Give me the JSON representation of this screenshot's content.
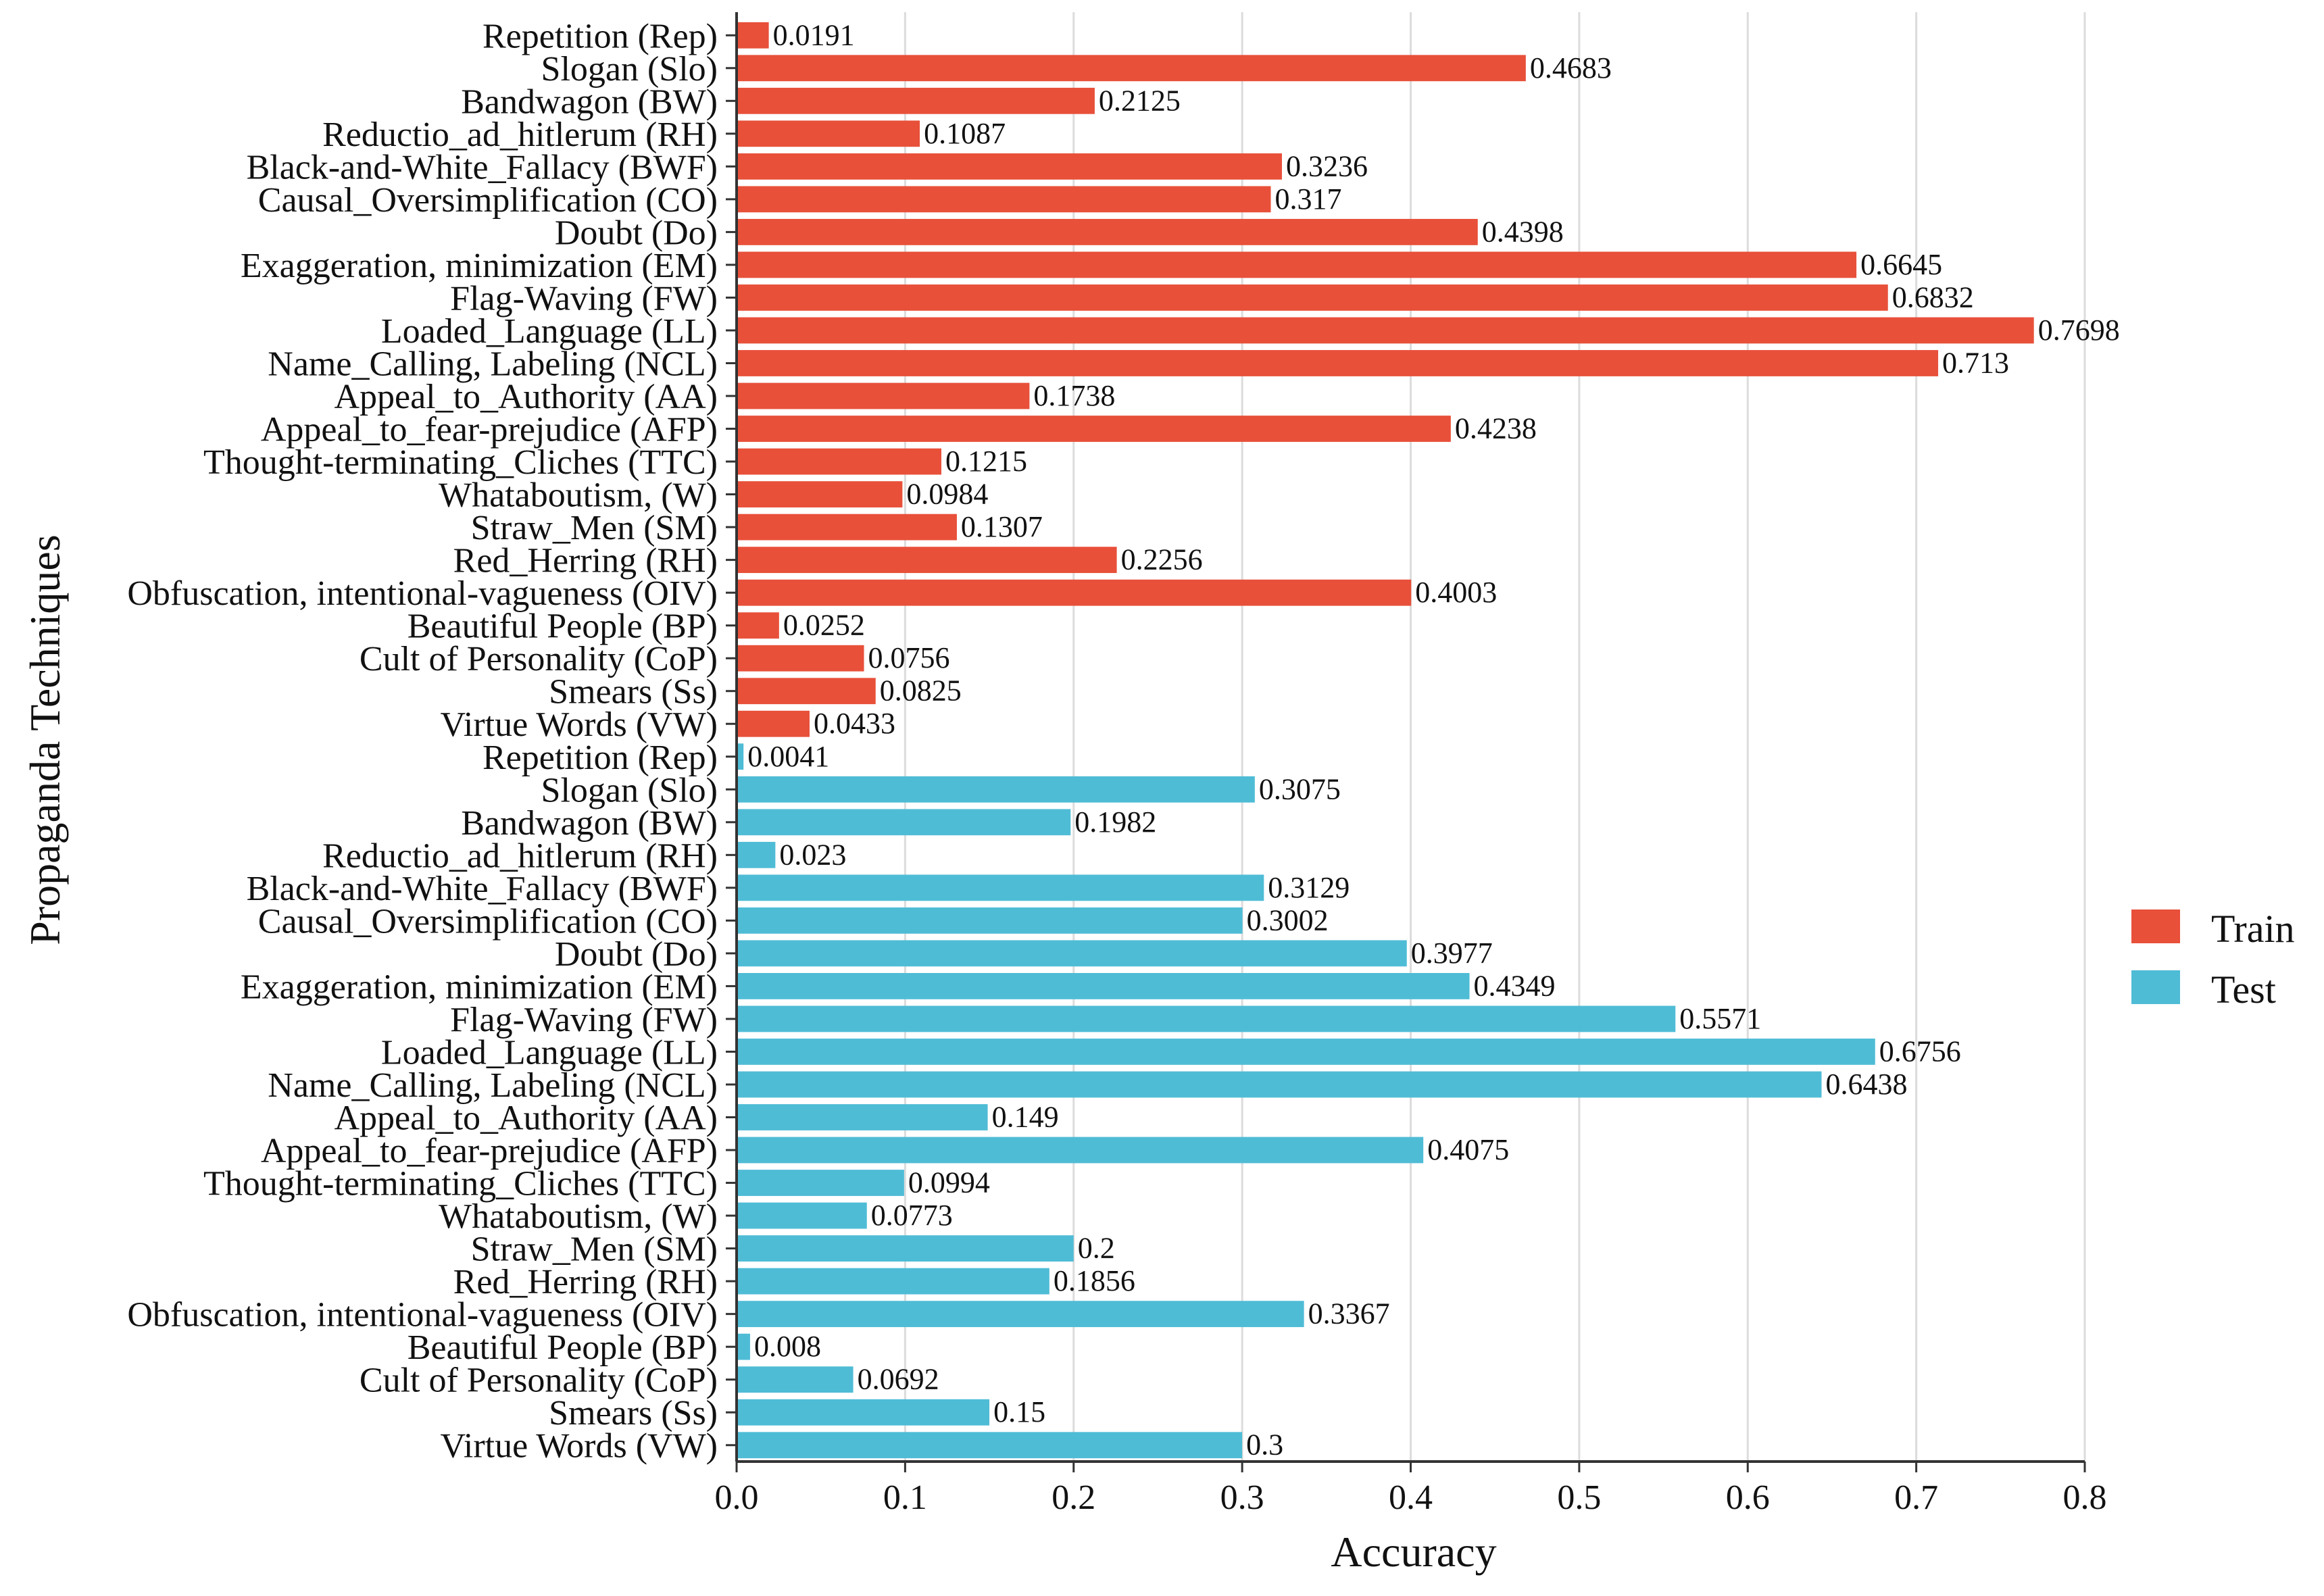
{
  "chart_data": {
    "type": "bar",
    "orientation": "horizontal",
    "title": "",
    "xlabel": "Accuracy",
    "ylabel": "Propaganda Techniques",
    "xlim": [
      0,
      0.8
    ],
    "xticks": [
      "0.0",
      "0.1",
      "0.2",
      "0.3",
      "0.4",
      "0.5",
      "0.6",
      "0.7",
      "0.8"
    ],
    "grid": "vertical",
    "legend_position": "right",
    "categories": [
      "Repetition (Rep)",
      "Slogan (Slo)",
      "Bandwagon (BW)",
      "Reductio_ad_hitlerum (RH)",
      "Black-and-White_Fallacy (BWF)",
      "Causal_Oversimplification (CO)",
      "Doubt (Do)",
      "Exaggeration, minimization (EM)",
      "Flag-Waving (FW)",
      "Loaded_Language (LL)",
      "Name_Calling, Labeling (NCL)",
      "Appeal_to_Authority (AA)",
      "Appeal_to_fear-prejudice (AFP)",
      "Thought-terminating_Cliches (TTC)",
      "Whataboutism, (W)",
      "Straw_Men (SM)",
      "Red_Herring (RH)",
      "Obfuscation, intentional-vagueness (OIV)",
      "Beautiful People (BP)",
      "Cult of Personality (CoP)",
      "Smears (Ss)",
      "Virtue Words (VW)"
    ],
    "series": [
      {
        "name": "Train",
        "color": "#E8503A",
        "values": [
          0.0191,
          0.4683,
          0.2125,
          0.1087,
          0.3236,
          0.317,
          0.4398,
          0.6645,
          0.6832,
          0.7698,
          0.713,
          0.1738,
          0.4238,
          0.1215,
          0.0984,
          0.1307,
          0.2256,
          0.4003,
          0.0252,
          0.0756,
          0.0825,
          0.0433
        ],
        "labels": [
          "0.0191",
          "0.4683",
          "0.2125",
          "0.1087",
          "0.3236",
          "0.317",
          "0.4398",
          "0.6645",
          "0.6832",
          "0.7698",
          "0.713",
          "0.1738",
          "0.4238",
          "0.1215",
          "0.0984",
          "0.1307",
          "0.2256",
          "0.4003",
          "0.0252",
          "0.0756",
          "0.0825",
          "0.0433"
        ]
      },
      {
        "name": "Test",
        "color": "#4FBCD6",
        "values": [
          0.0041,
          0.3075,
          0.1982,
          0.023,
          0.3129,
          0.3002,
          0.3977,
          0.4349,
          0.5571,
          0.6756,
          0.6438,
          0.149,
          0.4075,
          0.0994,
          0.0773,
          0.2,
          0.1856,
          0.3367,
          0.008,
          0.0692,
          0.15,
          0.3
        ],
        "labels": [
          "0.0041",
          "0.3075",
          "0.1982",
          "0.023",
          "0.3129",
          "0.3002",
          "0.3977",
          "0.4349",
          "0.5571",
          "0.6756",
          "0.6438",
          "0.149",
          "0.4075",
          "0.0994",
          "0.0773",
          "0.2",
          "0.1856",
          "0.3367",
          "0.008",
          "0.0692",
          "0.15",
          "0.3"
        ]
      }
    ]
  }
}
